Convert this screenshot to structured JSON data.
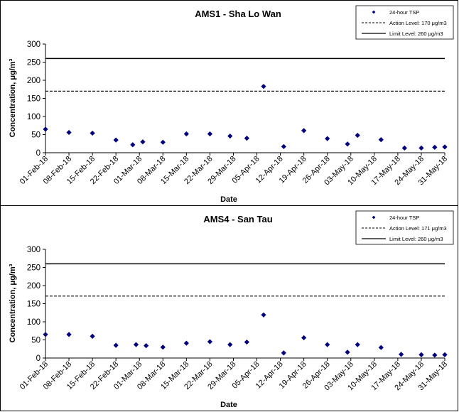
{
  "chart_data": [
    {
      "type": "scatter",
      "title": "AMS1 - Sha Lo Wan",
      "xlabel": "Date",
      "ylabel": "Concentration, μg/m³",
      "ylim": [
        0,
        300
      ],
      "yticks": [
        0,
        50,
        100,
        150,
        200,
        250,
        300
      ],
      "xticks": [
        "01-Feb-18",
        "08-Feb-18",
        "15-Feb-18",
        "22-Feb-18",
        "01-Mar-18",
        "08-Mar-18",
        "15-Mar-18",
        "22-Mar-18",
        "29-Mar-18",
        "05-Apr-18",
        "12-Apr-18",
        "19-Apr-18",
        "26-Apr-18",
        "03-May-18",
        "10-May-18",
        "17-May-18",
        "24-May-18",
        "31-May-18"
      ],
      "xrange": [
        "2018-02-01",
        "2018-05-31"
      ],
      "legend_position": "top-right",
      "legend": [
        "24-hour TSP",
        "Action Level: 170 μg/m3",
        "Limit Level: 260 μg/m3"
      ],
      "action_level": 170,
      "limit_level": 260,
      "series": [
        {
          "name": "24-hour TSP",
          "color": "#00007f",
          "points": [
            {
              "x": "2018-02-01",
              "y": 65
            },
            {
              "x": "2018-02-08",
              "y": 56
            },
            {
              "x": "2018-02-15",
              "y": 54
            },
            {
              "x": "2018-02-22",
              "y": 35
            },
            {
              "x": "2018-02-27",
              "y": 22
            },
            {
              "x": "2018-03-02",
              "y": 30
            },
            {
              "x": "2018-03-08",
              "y": 29
            },
            {
              "x": "2018-03-15",
              "y": 52
            },
            {
              "x": "2018-03-22",
              "y": 52
            },
            {
              "x": "2018-03-28",
              "y": 46
            },
            {
              "x": "2018-04-02",
              "y": 40
            },
            {
              "x": "2018-04-07",
              "y": 183
            },
            {
              "x": "2018-04-13",
              "y": 17
            },
            {
              "x": "2018-04-19",
              "y": 61
            },
            {
              "x": "2018-04-26",
              "y": 39
            },
            {
              "x": "2018-05-02",
              "y": 24
            },
            {
              "x": "2018-05-05",
              "y": 48
            },
            {
              "x": "2018-05-12",
              "y": 36
            },
            {
              "x": "2018-05-19",
              "y": 13
            },
            {
              "x": "2018-05-24",
              "y": 13
            },
            {
              "x": "2018-05-28",
              "y": 15
            },
            {
              "x": "2018-05-31",
              "y": 16
            }
          ]
        }
      ]
    },
    {
      "type": "scatter",
      "title": "AMS4 - San Tau",
      "xlabel": "Date",
      "ylabel": "Concentration, μg/m³",
      "ylim": [
        0,
        300
      ],
      "yticks": [
        0,
        50,
        100,
        150,
        200,
        250,
        300
      ],
      "xticks": [
        "01-Feb-18",
        "08-Feb-18",
        "15-Feb-18",
        "22-Feb-18",
        "01-Mar-18",
        "08-Mar-18",
        "15-Mar-18",
        "22-Mar-18",
        "29-Mar-18",
        "05-Apr-18",
        "12-Apr-18",
        "19-Apr-18",
        "26-Apr-18",
        "03-May-18",
        "10-May-18",
        "17-May-18",
        "24-May-18",
        "31-May-18"
      ],
      "xrange": [
        "2018-02-01",
        "2018-05-31"
      ],
      "legend_position": "top-right",
      "legend": [
        "24-hour TSP",
        "Action Level: 171 μg/m3",
        "Limit Level: 260 μg/m3"
      ],
      "action_level": 171,
      "limit_level": 260,
      "series": [
        {
          "name": "24-hour TSP",
          "color": "#00007f",
          "points": [
            {
              "x": "2018-02-01",
              "y": 65
            },
            {
              "x": "2018-02-08",
              "y": 65
            },
            {
              "x": "2018-02-15",
              "y": 60
            },
            {
              "x": "2018-02-22",
              "y": 35
            },
            {
              "x": "2018-02-28",
              "y": 37
            },
            {
              "x": "2018-03-03",
              "y": 34
            },
            {
              "x": "2018-03-08",
              "y": 30
            },
            {
              "x": "2018-03-15",
              "y": 41
            },
            {
              "x": "2018-03-22",
              "y": 45
            },
            {
              "x": "2018-03-28",
              "y": 37
            },
            {
              "x": "2018-04-02",
              "y": 44
            },
            {
              "x": "2018-04-07",
              "y": 119
            },
            {
              "x": "2018-04-13",
              "y": 14
            },
            {
              "x": "2018-04-19",
              "y": 56
            },
            {
              "x": "2018-04-26",
              "y": 37
            },
            {
              "x": "2018-05-02",
              "y": 16
            },
            {
              "x": "2018-05-05",
              "y": 37
            },
            {
              "x": "2018-05-12",
              "y": 29
            },
            {
              "x": "2018-05-18",
              "y": 10
            },
            {
              "x": "2018-05-24",
              "y": 9
            },
            {
              "x": "2018-05-28",
              "y": 8
            },
            {
              "x": "2018-05-31",
              "y": 9
            }
          ]
        }
      ]
    }
  ]
}
